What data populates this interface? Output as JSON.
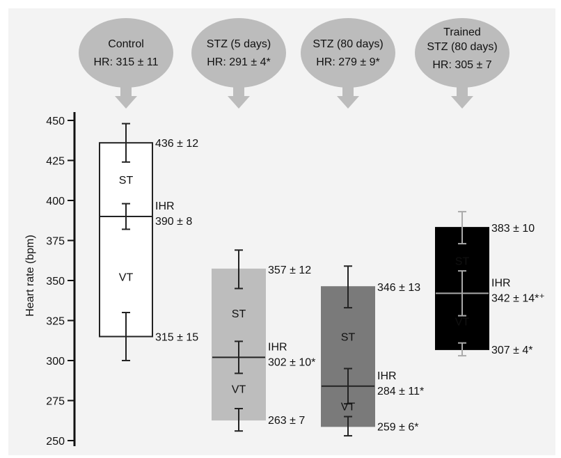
{
  "chart_data": {
    "type": "box",
    "ylabel": "Heart rate (bpm)",
    "ylim": [
      250,
      450
    ],
    "yticks": [
      250,
      275,
      300,
      325,
      350,
      375,
      400,
      425,
      450
    ],
    "groups": [
      {
        "id": "control",
        "name_lines": [
          "Control"
        ],
        "hr_label": "HR: 315 ± 11",
        "fill": "#ffffff",
        "inside_text": "#111111",
        "top": 436,
        "top_err": 12,
        "top_label": "436 ± 12",
        "ihr": 390,
        "ihr_err": 8,
        "ihr_label": "390 ± 8",
        "bottom": 315,
        "bottom_err": 15,
        "bottom_label": "315 ± 15",
        "st_label": "ST",
        "vt_label": "VT",
        "ihr_text": "IHR"
      },
      {
        "id": "stz5",
        "name_lines": [
          "STZ (5 days)"
        ],
        "hr_label": "HR: 291 ± 4*",
        "fill": "#bdbdbd",
        "inside_text": "#111111",
        "top": 357,
        "top_err": 12,
        "top_label": "357 ± 12",
        "ihr": 302,
        "ihr_err": 10,
        "ihr_label": "302 ± 10*",
        "bottom": 263,
        "bottom_err": 7,
        "bottom_label": "263 ± 7",
        "st_label": "ST",
        "vt_label": "VT",
        "ihr_text": "IHR"
      },
      {
        "id": "stz80",
        "name_lines": [
          "STZ (80 days)"
        ],
        "hr_label": "HR: 279 ± 9*",
        "fill": "#7a7a7a",
        "inside_text": "#111111",
        "top": 346,
        "top_err": 13,
        "top_label": "346 ± 13",
        "ihr": 284,
        "ihr_err": 11,
        "ihr_label": "284 ± 11*",
        "bottom": 259,
        "bottom_err": 6,
        "bottom_label": "259 ± 6*",
        "st_label": "ST",
        "vt_label": "VT",
        "ihr_text": "IHR"
      },
      {
        "id": "trained",
        "name_lines": [
          "Trained",
          "STZ (80 days)"
        ],
        "hr_label": "HR: 305 ± 7",
        "fill": "#000000",
        "inside_text": "#ffffff",
        "top": 383,
        "top_err": 10,
        "top_label": "383 ± 10",
        "ihr": 342,
        "ihr_err": 14,
        "ihr_label": "342 ± 14*⁺",
        "bottom": 307,
        "bottom_err": 4,
        "bottom_label": "307 ± 4*",
        "st_label": "ST",
        "vt_label": "VT",
        "ihr_text": "IHR"
      }
    ]
  }
}
